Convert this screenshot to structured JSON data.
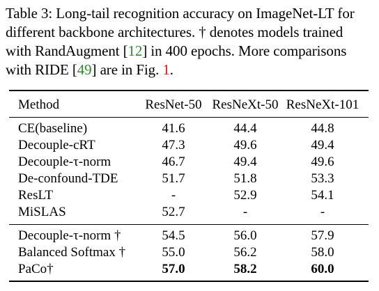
{
  "caption": {
    "line1": "Table 3: Long-tail recognition accuracy on ImageNet-LT for",
    "line2": "different backbone architectures. † denotes models trained",
    "line3_pre": "with RandAugment [",
    "line3_ref": "12",
    "line3_post": "] in 400 epochs. More comparisons",
    "line4_pre": "with RIDE [",
    "line4_ref": "49",
    "line4_mid": "] are in Fig. ",
    "line4_fig": "1",
    "line4_post": "."
  },
  "table": {
    "headers": [
      "Method",
      "ResNet-50",
      "ResNeXt-50",
      "ResNeXt-101"
    ],
    "group1": [
      {
        "method": "CE(baseline)",
        "r50": "41.6",
        "rx50": "44.4",
        "rx101": "44.8"
      },
      {
        "method": "Decouple-cRT",
        "r50": "47.3",
        "rx50": "49.6",
        "rx101": "49.4"
      },
      {
        "method": "Decouple-τ-norm",
        "r50": "46.7",
        "rx50": "49.4",
        "rx101": "49.6"
      },
      {
        "method": "De-confound-TDE",
        "r50": "51.7",
        "rx50": "51.8",
        "rx101": "53.3"
      },
      {
        "method": "ResLT",
        "r50": "-",
        "rx50": "52.9",
        "rx101": "54.1"
      },
      {
        "method": "MiSLAS",
        "r50": "52.7",
        "rx50": "-",
        "rx101": "-"
      }
    ],
    "group2": [
      {
        "method": "Decouple-τ-norm †",
        "r50": "54.5",
        "rx50": "56.0",
        "rx101": "57.9"
      },
      {
        "method": "Balanced Softmax †",
        "r50": "55.0",
        "rx50": "56.2",
        "rx101": "58.0"
      },
      {
        "method": "PaCo†",
        "r50": "57.0",
        "rx50": "58.2",
        "rx101": "60.0"
      }
    ]
  }
}
